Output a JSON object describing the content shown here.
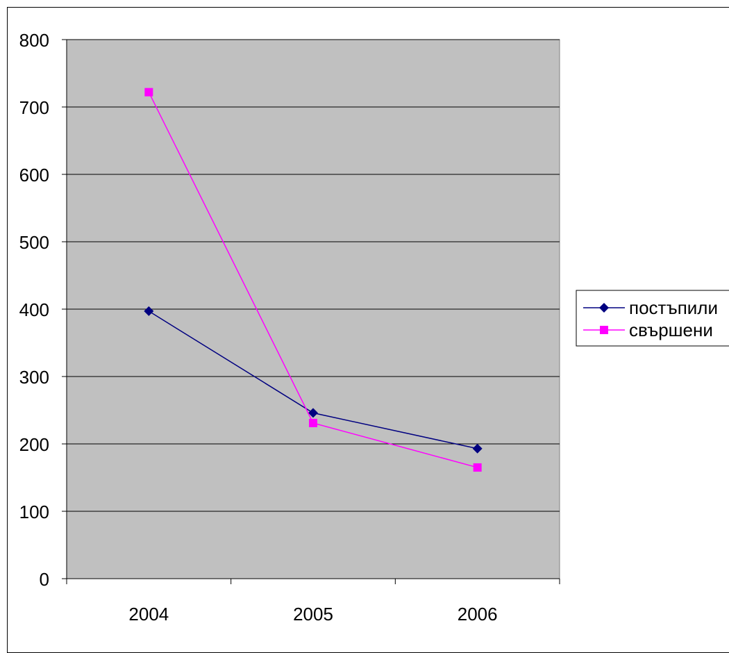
{
  "chart_data": {
    "type": "line",
    "categories": [
      "2004",
      "2005",
      "2006"
    ],
    "series": [
      {
        "name": "постъпили",
        "values": [
          397,
          246,
          193
        ],
        "color": "#000080",
        "marker": "diamond"
      },
      {
        "name": "свършени",
        "values": [
          722,
          231,
          165
        ],
        "color": "#FF00FF",
        "marker": "square"
      }
    ],
    "ylim": [
      0,
      800
    ],
    "yticks": [
      0,
      100,
      200,
      300,
      400,
      500,
      600,
      700,
      800
    ],
    "grid": true,
    "plot_background": "#C0C0C0",
    "legend": "right"
  }
}
